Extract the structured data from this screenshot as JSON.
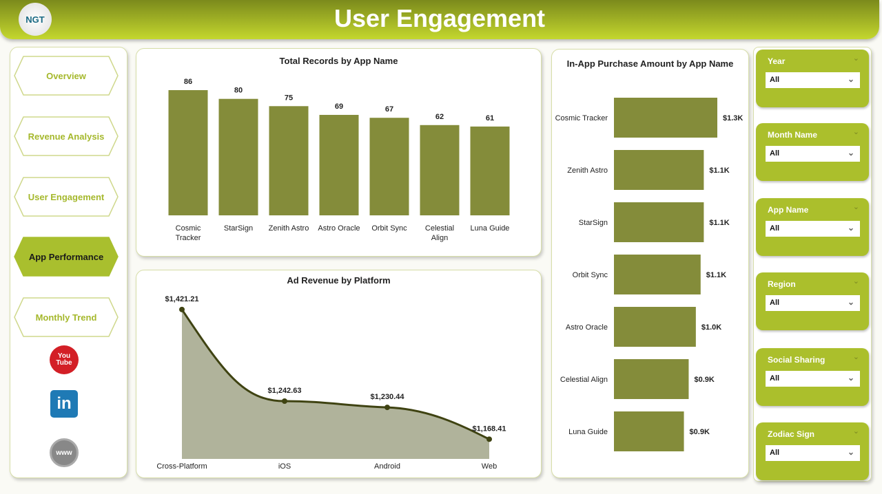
{
  "header": {
    "title": "User Engagement",
    "logo_text": "NGT"
  },
  "nav": [
    {
      "label": "Overview",
      "active": false
    },
    {
      "label": "Revenue Analysis",
      "active": false
    },
    {
      "label": "User Engagement",
      "active": false
    },
    {
      "label": "App Performance",
      "active": true
    },
    {
      "label": "Monthly Trend",
      "active": false
    }
  ],
  "social": {
    "youtube": "You Tube",
    "linkedin": "in",
    "www": "www"
  },
  "colors": {
    "accent": "#abbf2c",
    "bar": "#848c3a",
    "area": "#b0b39b",
    "line": "#3f4312"
  },
  "filters": [
    {
      "label": "Year",
      "value": "All"
    },
    {
      "label": "Month Name",
      "value": "All"
    },
    {
      "label": "App Name",
      "value": "All"
    },
    {
      "label": "Region",
      "value": "All"
    },
    {
      "label": "Social Sharing",
      "value": "All"
    },
    {
      "label": "Zodiac Sign",
      "value": "All"
    }
  ],
  "chart_data": [
    {
      "type": "bar",
      "title": "Total Records by App Name",
      "categories": [
        "Cosmic Tracker",
        "StarSign",
        "Zenith Astro",
        "Astro Oracle",
        "Orbit Sync",
        "Celestial Align",
        "Luna Guide"
      ],
      "values": [
        86,
        80,
        75,
        69,
        67,
        62,
        61
      ],
      "labels": [
        "86",
        "80",
        "75",
        "69",
        "67",
        "62",
        "61"
      ]
    },
    {
      "type": "area",
      "title": "Ad Revenue by Platform",
      "categories": [
        "Cross-Platform",
        "iOS",
        "Android",
        "Web"
      ],
      "values": [
        1421.21,
        1242.63,
        1230.44,
        1168.41
      ],
      "labels": [
        "$1,421.21",
        "$1,242.63",
        "$1,230.44",
        "$1,168.41"
      ]
    },
    {
      "type": "bar",
      "orientation": "horizontal",
      "title": "In-App Purchase Amount by App Name",
      "categories": [
        "Cosmic Tracker",
        "Zenith Astro",
        "StarSign",
        "Orbit Sync",
        "Astro Oracle",
        "Celestial Align",
        "Luna Guide"
      ],
      "values": [
        1300,
        1130,
        1130,
        1090,
        1030,
        940,
        880
      ],
      "labels": [
        "$1.3K",
        "$1.1K",
        "$1.1K",
        "$1.1K",
        "$1.0K",
        "$0.9K",
        "$0.9K"
      ]
    }
  ]
}
